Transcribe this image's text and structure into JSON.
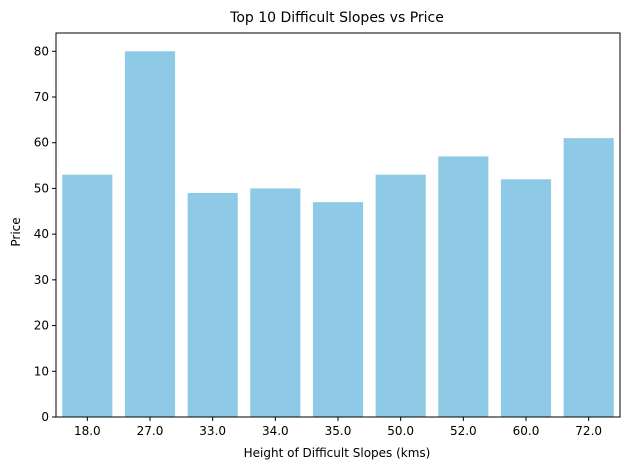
{
  "chart_data": {
    "type": "bar",
    "title": "Top 10 Difficult Slopes vs Price",
    "xlabel": "Height of Difficult Slopes (kms)",
    "ylabel": "Price",
    "categories": [
      "18.0",
      "27.0",
      "33.0",
      "34.0",
      "35.0",
      "50.0",
      "52.0",
      "60.0",
      "72.0"
    ],
    "values": [
      53,
      80,
      49,
      50,
      47,
      53,
      57,
      52,
      61
    ],
    "ylim": [
      0,
      84
    ],
    "yticks": [
      "0",
      "10",
      "20",
      "30",
      "40",
      "50",
      "60",
      "70",
      "80"
    ],
    "grid": false,
    "bar_color": "#8ecae6"
  }
}
